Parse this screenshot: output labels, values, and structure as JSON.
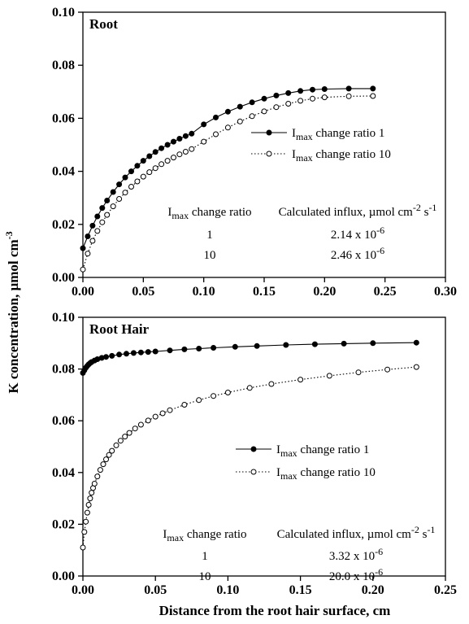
{
  "chart_data": [
    {
      "type": "line",
      "title": "Root",
      "xlim": [
        0,
        0.3
      ],
      "ylim": [
        0,
        0.1
      ],
      "xticks": [
        "0.00",
        "0.05",
        "0.10",
        "0.15",
        "0.20",
        "0.25",
        "0.30"
      ],
      "yticks": [
        "0.00",
        "0.02",
        "0.04",
        "0.06",
        "0.08",
        "0.10"
      ],
      "legend_position": "right",
      "series": [
        {
          "name_main": "I",
          "name_sub": "max",
          "name_rest": " change ratio 1",
          "style": "solid-filled",
          "x": [
            0,
            0.004,
            0.008,
            0.012,
            0.016,
            0.02,
            0.025,
            0.03,
            0.035,
            0.04,
            0.045,
            0.05,
            0.055,
            0.06,
            0.065,
            0.07,
            0.075,
            0.08,
            0.085,
            0.09,
            0.1,
            0.11,
            0.12,
            0.13,
            0.14,
            0.15,
            0.16,
            0.17,
            0.18,
            0.19,
            0.2,
            0.22,
            0.24
          ],
          "y": [
            0.011,
            0.0155,
            0.0195,
            0.023,
            0.0262,
            0.029,
            0.0322,
            0.0351,
            0.0377,
            0.04,
            0.0421,
            0.044,
            0.0457,
            0.0473,
            0.0487,
            0.05,
            0.0512,
            0.0523,
            0.0533,
            0.0542,
            0.0577,
            0.0603,
            0.0625,
            0.0644,
            0.066,
            0.0674,
            0.0686,
            0.0695,
            0.0703,
            0.0708,
            0.071,
            0.0712,
            0.0712
          ]
        },
        {
          "name_main": "I",
          "name_sub": "max",
          "name_rest": " change ratio 10",
          "style": "dotted-open",
          "x": [
            0,
            0.004,
            0.008,
            0.012,
            0.016,
            0.02,
            0.025,
            0.03,
            0.035,
            0.04,
            0.045,
            0.05,
            0.055,
            0.06,
            0.065,
            0.07,
            0.075,
            0.08,
            0.085,
            0.09,
            0.1,
            0.11,
            0.12,
            0.13,
            0.14,
            0.15,
            0.16,
            0.17,
            0.18,
            0.19,
            0.2,
            0.22,
            0.24
          ],
          "y": [
            0.003,
            0.009,
            0.0138,
            0.0175,
            0.0208,
            0.0236,
            0.0268,
            0.0296,
            0.032,
            0.0342,
            0.0362,
            0.038,
            0.0397,
            0.0412,
            0.0427,
            0.044,
            0.0452,
            0.0464,
            0.0474,
            0.0484,
            0.0512,
            0.054,
            0.0565,
            0.0588,
            0.0608,
            0.0626,
            0.0642,
            0.0655,
            0.0666,
            0.0674,
            0.0679,
            0.0683,
            0.0684
          ]
        }
      ],
      "table": {
        "headers": [
          {
            "main": "I",
            "sub": "max",
            "rest": " change ratio"
          },
          {
            "main": "Calculated influx, µmol cm",
            "sup": "-2",
            "rest": " s",
            "sup2": "-1"
          }
        ],
        "rows": [
          {
            "ratio": "1",
            "base": "2.14 x 10",
            "exp": "-6"
          },
          {
            "ratio": "10",
            "base": "2.46 x 10",
            "exp": "-6"
          }
        ]
      }
    },
    {
      "type": "line",
      "title": "Root Hair",
      "xlim": [
        0,
        0.25
      ],
      "ylim": [
        0,
        0.1
      ],
      "xticks": [
        "0.00",
        "0.05",
        "0.10",
        "0.15",
        "0.20",
        "0.25"
      ],
      "yticks": [
        "0.00",
        "0.02",
        "0.04",
        "0.06",
        "0.08",
        "0.10"
      ],
      "legend_position": "right",
      "series": [
        {
          "name_main": "I",
          "name_sub": "max",
          "name_rest": " change ratio 1",
          "style": "solid-filled",
          "x": [
            0,
            0.001,
            0.002,
            0.003,
            0.004,
            0.005,
            0.006,
            0.008,
            0.01,
            0.013,
            0.016,
            0.02,
            0.025,
            0.03,
            0.035,
            0.04,
            0.045,
            0.05,
            0.06,
            0.07,
            0.08,
            0.09,
            0.105,
            0.12,
            0.14,
            0.16,
            0.18,
            0.2,
            0.23
          ],
          "y": [
            0.0785,
            0.0795,
            0.0805,
            0.0812,
            0.0818,
            0.0823,
            0.0827,
            0.0833,
            0.0838,
            0.0843,
            0.0847,
            0.0851,
            0.0856,
            0.0859,
            0.0862,
            0.0864,
            0.0866,
            0.0868,
            0.0872,
            0.0876,
            0.0879,
            0.0882,
            0.0886,
            0.0889,
            0.0893,
            0.0896,
            0.0898,
            0.09,
            0.0902
          ]
        },
        {
          "name_main": "I",
          "name_sub": "max",
          "name_rest": " change ratio 10",
          "style": "dotted-open",
          "x": [
            0,
            0.001,
            0.002,
            0.003,
            0.004,
            0.005,
            0.006,
            0.007,
            0.008,
            0.01,
            0.012,
            0.014,
            0.016,
            0.018,
            0.02,
            0.023,
            0.026,
            0.029,
            0.032,
            0.036,
            0.04,
            0.045,
            0.05,
            0.055,
            0.06,
            0.07,
            0.08,
            0.09,
            0.1,
            0.115,
            0.13,
            0.15,
            0.17,
            0.19,
            0.21,
            0.23
          ],
          "y": [
            0.011,
            0.017,
            0.021,
            0.0245,
            0.0275,
            0.03,
            0.0322,
            0.034,
            0.0357,
            0.0385,
            0.041,
            0.0432,
            0.0451,
            0.0468,
            0.0484,
            0.0505,
            0.0523,
            0.0539,
            0.0553,
            0.057,
            0.0585,
            0.0601,
            0.0616,
            0.0629,
            0.0641,
            0.0662,
            0.068,
            0.0696,
            0.0709,
            0.0727,
            0.0742,
            0.0759,
            0.0774,
            0.0787,
            0.0798,
            0.0808
          ]
        }
      ],
      "table": {
        "headers": [
          {
            "main": "I",
            "sub": "max",
            "rest": " change ratio"
          },
          {
            "main": "Calculated influx, µmol cm",
            "sup": "-2",
            "rest": " s",
            "sup2": "-1"
          }
        ],
        "rows": [
          {
            "ratio": "1",
            "base": "3.32 x 10",
            "exp": "-6"
          },
          {
            "ratio": "10",
            "base": "20.0 x 10",
            "exp": "-6"
          }
        ]
      }
    }
  ],
  "axes": {
    "ylabel_main": "K concentration, µmol cm",
    "ylabel_sup": "-3",
    "xlabel": "Distance from the root hair surface, cm"
  }
}
